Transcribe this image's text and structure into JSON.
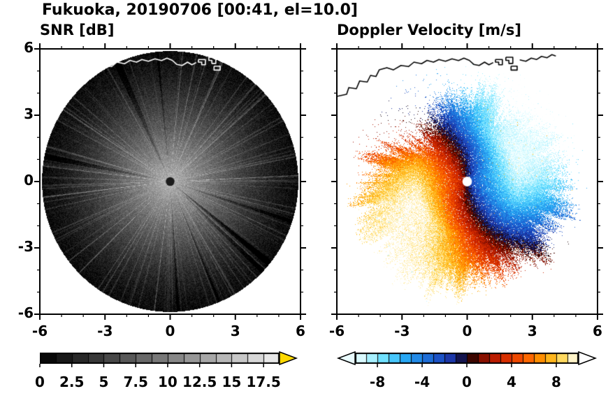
{
  "figure": {
    "title": "Fukuoka, 20190706 [00:41, el=10.0]",
    "background": "#ffffff",
    "text_color": "#000000"
  },
  "panels": [
    {
      "id": "snr",
      "title": "SNR [dB]"
    },
    {
      "id": "doppler",
      "title": "Doppler Velocity [m/s]"
    }
  ],
  "axes": {
    "x_range": [
      -6,
      6
    ],
    "y_range": [
      -6,
      6
    ],
    "major_ticks": [
      -6,
      -3,
      0,
      3,
      6
    ],
    "minor_tick_step": 1,
    "x_tick_labels": [
      "-6",
      "-3",
      "0",
      "3",
      "6"
    ],
    "x_tick_values": [
      -6,
      -3,
      0,
      3,
      6
    ],
    "y_tick_labels": [
      "6",
      "3",
      "0",
      "-3",
      "-6"
    ],
    "y_tick_values": [
      6,
      3,
      0,
      -3,
      -6
    ]
  },
  "colorbars": [
    {
      "id": "snr",
      "units": "dB",
      "range": [
        0,
        18.75
      ],
      "segments": 15,
      "tick_values": [
        0,
        2.5,
        5,
        7.5,
        10,
        12.5,
        15,
        17.5
      ],
      "tick_labels": [
        "0",
        "2.5",
        "5",
        "7.5",
        "10",
        "12.5",
        "15",
        "17.5"
      ],
      "stops": [
        [
          0,
          "#000000"
        ],
        [
          1,
          "#efefef"
        ]
      ],
      "under_arrow": false,
      "over_arrow": true,
      "over_arrow_color": "#ffd900",
      "under_arrow_color": "#ffffff"
    },
    {
      "id": "doppler",
      "units": "m/s",
      "range": [
        -10,
        10
      ],
      "segments": 20,
      "tick_values": [
        -8,
        -4,
        0,
        4,
        8
      ],
      "tick_labels": [
        "-8",
        "-4",
        "0",
        "4",
        "8"
      ],
      "stops": [
        [
          0,
          "#f2ffff"
        ],
        [
          0.06,
          "#b8f4ff"
        ],
        [
          0.14,
          "#5fdcff"
        ],
        [
          0.22,
          "#28aaf5"
        ],
        [
          0.3,
          "#1f7be0"
        ],
        [
          0.38,
          "#1c4fc4"
        ],
        [
          0.44,
          "#1c2f9e"
        ],
        [
          0.475,
          "#14144e"
        ],
        [
          0.5,
          "#160606"
        ],
        [
          0.525,
          "#3d0600"
        ],
        [
          0.56,
          "#7a0e00"
        ],
        [
          0.62,
          "#b81a00"
        ],
        [
          0.7,
          "#e63900"
        ],
        [
          0.78,
          "#ff6a00"
        ],
        [
          0.85,
          "#ffa200"
        ],
        [
          0.91,
          "#ffd040"
        ],
        [
          0.96,
          "#ffeda8"
        ],
        [
          1,
          "#ffffff"
        ]
      ],
      "under_arrow": true,
      "over_arrow": true,
      "under_arrow_color": "#eafcff",
      "over_arrow_color": "#ffffff"
    }
  ],
  "coastline": {
    "color_on_snr_panel": "#ffffff",
    "color_on_doppler_panel": "#000000",
    "paths": [
      [
        [
          -6.0,
          3.85
        ],
        [
          -5.55,
          3.95
        ],
        [
          -5.45,
          4.25
        ],
        [
          -5.1,
          4.2
        ],
        [
          -4.95,
          4.55
        ],
        [
          -4.6,
          4.5
        ],
        [
          -4.45,
          4.8
        ],
        [
          -4.2,
          4.75
        ],
        [
          -4.05,
          5.05
        ],
        [
          -3.7,
          5.15
        ],
        [
          -3.4,
          5.05
        ],
        [
          -3.05,
          5.25
        ],
        [
          -2.7,
          5.2
        ],
        [
          -2.45,
          5.4
        ],
        [
          -2.1,
          5.33
        ],
        [
          -1.85,
          5.48
        ],
        [
          -1.55,
          5.4
        ],
        [
          -1.3,
          5.52
        ],
        [
          -1.0,
          5.44
        ],
        [
          -0.7,
          5.55
        ],
        [
          -0.4,
          5.47
        ],
        [
          -0.15,
          5.58
        ],
        [
          0.1,
          5.48
        ],
        [
          0.3,
          5.3
        ],
        [
          0.55,
          5.25
        ],
        [
          0.8,
          5.4
        ],
        [
          1.0,
          5.28
        ],
        [
          1.2,
          5.38
        ]
      ],
      [
        [
          1.3,
          5.52
        ],
        [
          1.62,
          5.52
        ],
        [
          1.62,
          5.28
        ],
        [
          1.45,
          5.28
        ],
        [
          1.45,
          5.4
        ],
        [
          1.3,
          5.4
        ],
        [
          1.3,
          5.52
        ]
      ],
      [
        [
          1.78,
          5.62
        ],
        [
          2.1,
          5.62
        ],
        [
          2.1,
          5.34
        ],
        [
          1.92,
          5.34
        ],
        [
          1.92,
          5.48
        ],
        [
          1.78,
          5.48
        ],
        [
          1.78,
          5.62
        ]
      ],
      [
        [
          2.02,
          5.22
        ],
        [
          2.3,
          5.22
        ],
        [
          2.3,
          5.04
        ],
        [
          2.02,
          5.04
        ],
        [
          2.02,
          5.22
        ]
      ],
      [
        [
          2.42,
          5.5
        ],
        [
          2.7,
          5.44
        ],
        [
          2.95,
          5.58
        ],
        [
          3.2,
          5.52
        ],
        [
          3.42,
          5.66
        ],
        [
          3.68,
          5.6
        ],
        [
          3.9,
          5.74
        ],
        [
          4.08,
          5.68
        ]
      ]
    ]
  },
  "chart_data": [
    {
      "type": "heatmap",
      "id": "snr",
      "title": "SNR [dB]",
      "geometry": "radar-ppi-disk",
      "x_range": [
        -6,
        6
      ],
      "y_range": [
        -6,
        6
      ],
      "x_ticks": [
        -6,
        -3,
        0,
        3,
        6
      ],
      "y_ticks": [
        -6,
        -3,
        0,
        3,
        6
      ],
      "disk_radius": 5.9,
      "value_units": "dB",
      "value_range": [
        0,
        18.75
      ],
      "colorbar_tick_values": [
        0,
        2.5,
        5,
        7.5,
        10,
        12.5,
        15,
        17.5
      ],
      "radial_profile": {
        "center_db": 13.5,
        "edge_db": 0.8,
        "falloff_power": 1.35
      },
      "noise_db": 3,
      "bright_ray_count": 130,
      "dark_ray_count": 9,
      "center_dot": {
        "radius": 0.2,
        "color": "#1c1c1c"
      },
      "summary": "Grayscale SNR PPI disk: ~13 dB near the radar fading to ~0 dB (black) at the 6 km edge, thin bright radial spokes and a few dark rays, dark dot at the radar site, coastline drawn in white across the top of the disk."
    },
    {
      "type": "heatmap",
      "id": "doppler",
      "title": "Doppler Velocity [m/s]",
      "geometry": "radar-ppi-disk",
      "x_range": [
        -6,
        6
      ],
      "y_range": [
        -6,
        6
      ],
      "x_ticks": [
        -6,
        -3,
        0,
        3,
        6
      ],
      "y_ticks": [
        -6,
        -3,
        0,
        3,
        6
      ],
      "value_units": "m/s",
      "value_range": [
        -10,
        10
      ],
      "colorbar_tick_values": [
        -8,
        -4,
        0,
        4,
        8
      ],
      "coverage_radius": 4.25,
      "coverage_dent_angle_deg": 135,
      "dipole": {
        "max_speed": 10,
        "negative_lobe": "east",
        "positive_lobe": "west",
        "magnitude_growth_radius": 3.0,
        "spiral_twist_rad_per_km": 0.18
      },
      "noise_ms": 2.4,
      "speckle_fraction": 0.012,
      "center_dot": {
        "radius": 0.22,
        "color": "#ffffff"
      },
      "summary": "Doppler velocity couplet: approaching flow (negative, blue/cyan) east of the radar, receding flow (positive, red/orange/yellow) to the west, near-zero dark band snaking through the center, ragged speckled echo edge near 4-5 km, coastline drawn in black at top."
    }
  ]
}
